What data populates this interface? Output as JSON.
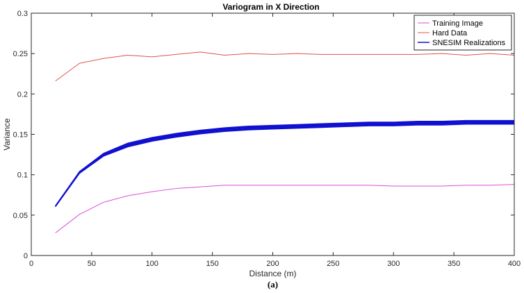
{
  "chart_data": {
    "type": "line",
    "title": "Variogram in X Direction",
    "xlabel": "Distance (m)",
    "ylabel": "Variance",
    "xlim": [
      0,
      400
    ],
    "ylim": [
      0,
      0.3
    ],
    "x_ticks": [
      0,
      50,
      100,
      150,
      200,
      250,
      300,
      350,
      400
    ],
    "x_tick_labels": [
      "0",
      "50",
      "100",
      "150",
      "200",
      "250",
      "300",
      "350",
      "400"
    ],
    "y_ticks": [
      0,
      0.05,
      0.1,
      0.15,
      0.2,
      0.25,
      0.3
    ],
    "y_tick_labels": [
      "0",
      "0.05",
      "0.1",
      "0.15",
      "0.2",
      "0.25",
      "0.3"
    ],
    "grid": false,
    "legend_position": "top-right",
    "caption": "(a)",
    "x": [
      20,
      40,
      60,
      80,
      100,
      120,
      140,
      160,
      180,
      200,
      220,
      240,
      260,
      280,
      300,
      320,
      340,
      360,
      380,
      400
    ],
    "series": [
      {
        "name": "Training Image",
        "color": "#d84fd8",
        "values": [
          0.028,
          0.051,
          0.066,
          0.074,
          0.079,
          0.083,
          0.085,
          0.087,
          0.087,
          0.087,
          0.087,
          0.087,
          0.087,
          0.087,
          0.086,
          0.086,
          0.086,
          0.087,
          0.087,
          0.088
        ]
      },
      {
        "name": "Hard Data",
        "color": "#e05050",
        "values": [
          0.216,
          0.238,
          0.244,
          0.248,
          0.246,
          0.249,
          0.252,
          0.248,
          0.25,
          0.249,
          0.25,
          0.249,
          0.249,
          0.249,
          0.249,
          0.249,
          0.25,
          0.248,
          0.25,
          0.248
        ]
      },
      {
        "name": "SNESIM Realizations",
        "color": "#1010d0",
        "values": [
          0.061,
          0.103,
          0.125,
          0.137,
          0.144,
          0.149,
          0.153,
          0.156,
          0.158,
          0.159,
          0.16,
          0.161,
          0.162,
          0.163,
          0.163,
          0.164,
          0.164,
          0.165,
          0.165,
          0.165
        ]
      }
    ],
    "realization_offsets": [
      -0.0025,
      -0.0015,
      -0.0008,
      0.0,
      0.0007,
      0.0014,
      0.0022,
      -0.002,
      0.0018,
      0.001
    ]
  }
}
